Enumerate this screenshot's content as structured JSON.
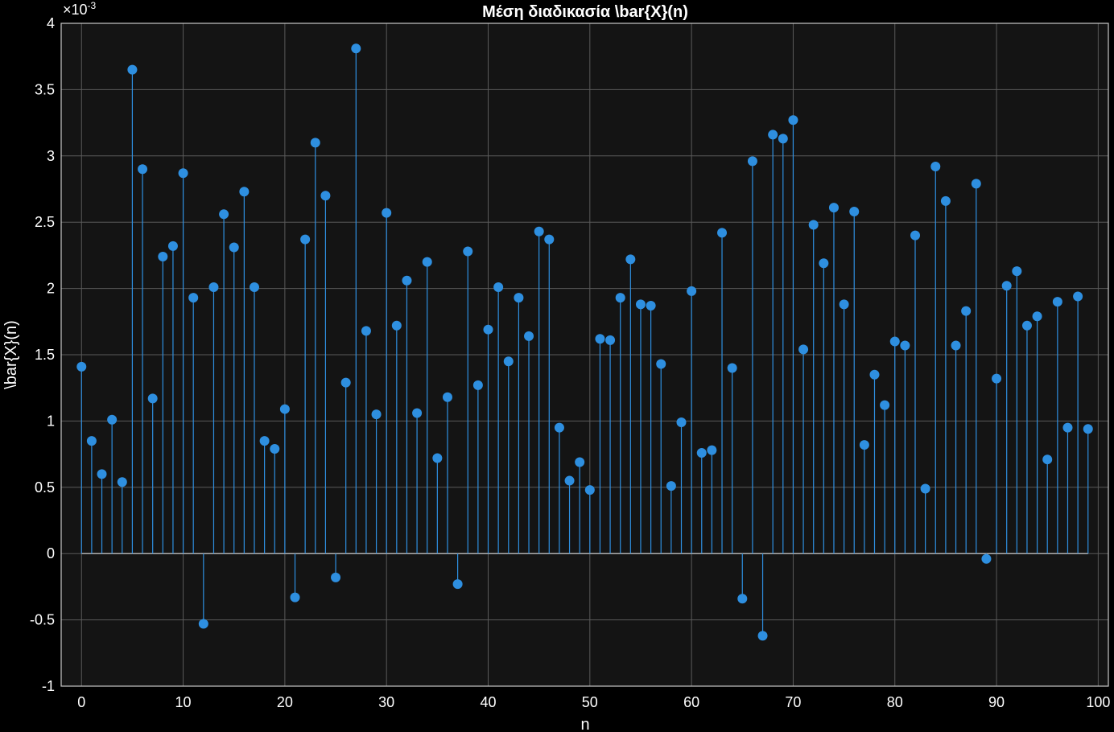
{
  "chart_data": {
    "type": "stem",
    "title": "Μέση διαδικασία \\bar{X}(n)",
    "xlabel": "n",
    "ylabel": "\\bar{X}(n)",
    "y_exponent_label": "×10",
    "y_exponent_power": "-3",
    "xlim": [
      -2,
      101
    ],
    "ylim": [
      -1,
      4
    ],
    "grid": true,
    "xticks": [
      0,
      10,
      20,
      30,
      40,
      50,
      60,
      70,
      80,
      90,
      100
    ],
    "xtick_labels": [
      "0",
      "10",
      "20",
      "30",
      "40",
      "50",
      "60",
      "70",
      "80",
      "90",
      "100"
    ],
    "yticks": [
      -1,
      -0.5,
      0,
      0.5,
      1,
      1.5,
      2,
      2.5,
      3,
      3.5,
      4
    ],
    "ytick_labels": [
      "-1",
      "-0.5",
      "0",
      "0.5",
      "1",
      "1.5",
      "2",
      "2.5",
      "3",
      "3.5",
      "4"
    ],
    "colors": {
      "background": "#000000",
      "axes": "#141414",
      "series": "#2e8fe0",
      "grid": "#5a5a5a"
    },
    "x": [
      0,
      1,
      2,
      3,
      4,
      5,
      6,
      7,
      8,
      9,
      10,
      11,
      12,
      13,
      14,
      15,
      16,
      17,
      18,
      19,
      20,
      21,
      22,
      23,
      24,
      25,
      26,
      27,
      28,
      29,
      30,
      31,
      32,
      33,
      34,
      35,
      36,
      37,
      38,
      39,
      40,
      41,
      42,
      43,
      44,
      45,
      46,
      47,
      48,
      49,
      50,
      51,
      52,
      53,
      54,
      55,
      56,
      57,
      58,
      59,
      60,
      61,
      62,
      63,
      64,
      65,
      66,
      67,
      68,
      69,
      70,
      71,
      72,
      73,
      74,
      75,
      76,
      77,
      78,
      79,
      80,
      81,
      82,
      83,
      84,
      85,
      86,
      87,
      88,
      89,
      90,
      91,
      92,
      93,
      94,
      95,
      96,
      97,
      98,
      99
    ],
    "values": [
      1.41,
      0.85,
      0.6,
      1.01,
      0.54,
      3.65,
      2.9,
      1.17,
      2.24,
      2.32,
      2.87,
      1.93,
      -0.53,
      2.01,
      2.56,
      2.31,
      2.73,
      2.01,
      0.85,
      0.79,
      1.09,
      -0.33,
      2.37,
      3.1,
      2.7,
      -0.18,
      1.29,
      3.81,
      1.68,
      1.05,
      2.57,
      1.72,
      2.06,
      1.06,
      2.2,
      0.72,
      1.18,
      -0.23,
      2.28,
      1.27,
      1.69,
      2.01,
      1.45,
      1.93,
      1.64,
      2.43,
      2.37,
      0.95,
      0.55,
      0.69,
      0.48,
      1.62,
      1.61,
      1.93,
      2.22,
      1.88,
      1.87,
      1.43,
      0.51,
      0.99,
      1.98,
      0.76,
      0.78,
      2.42,
      1.4,
      -0.34,
      2.96,
      -0.62,
      3.16,
      3.13,
      3.27,
      1.54,
      2.48,
      2.19,
      2.61,
      1.88,
      2.58,
      0.82,
      1.35,
      1.12,
      1.6,
      1.57,
      2.4,
      0.49,
      2.92,
      2.66,
      1.57,
      1.83,
      2.79,
      -0.04,
      1.32,
      2.02,
      2.13,
      1.72,
      1.79,
      0.71,
      1.9,
      0.95,
      1.94,
      0.94
    ]
  }
}
